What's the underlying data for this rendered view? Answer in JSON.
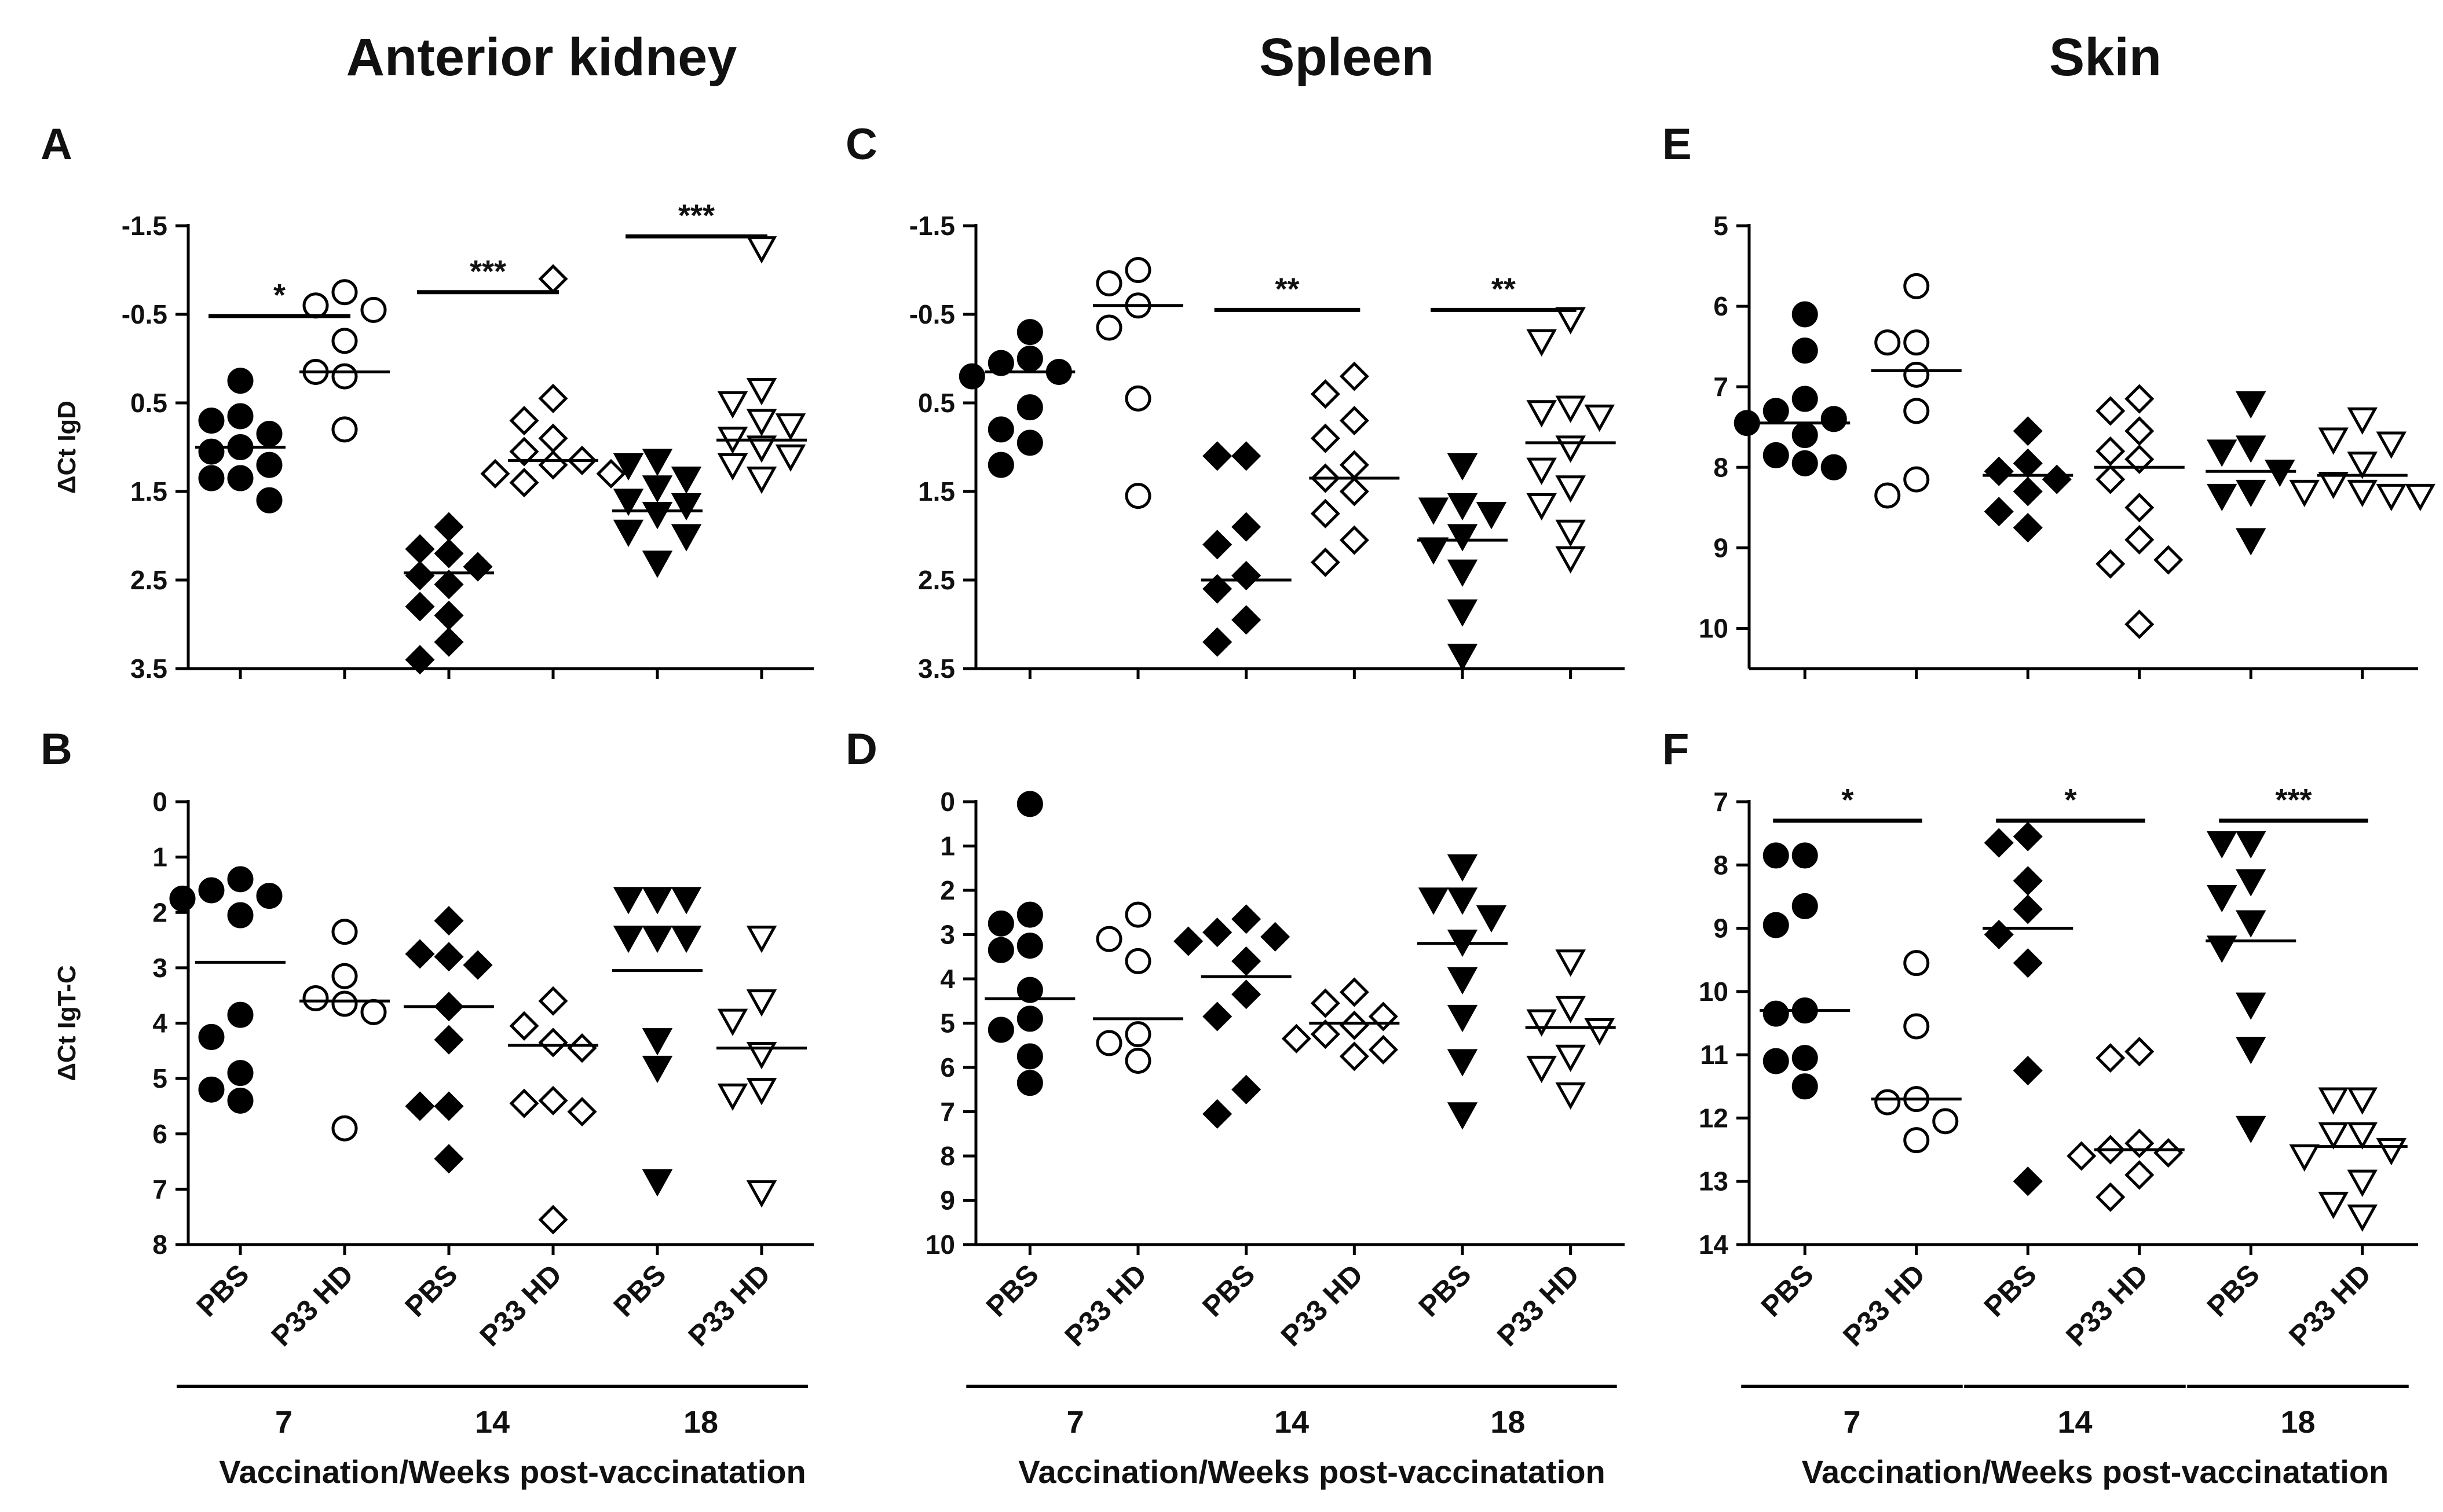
{
  "figure": {
    "column_titles": [
      "Anterior kidney",
      "Spleen",
      "Skin"
    ],
    "xlabel": "Vaccination/Weeks post-vaccinatation",
    "categories": [
      "PBS",
      "P33 HD",
      "PBS",
      "P33 HD",
      "PBS",
      "P33 HD"
    ],
    "weeks": [
      "7",
      "14",
      "18"
    ]
  },
  "marker_styles": {
    "groups": [
      "PBS-7",
      "P33 HD-7",
      "PBS-14",
      "P33 HD-14",
      "PBS-18",
      "P33 HD-18"
    ],
    "shapes": [
      "circle",
      "circle",
      "diamond",
      "diamond",
      "triangle-down",
      "triangle-down"
    ],
    "filled": [
      true,
      false,
      true,
      false,
      true,
      false
    ],
    "color": "#000000"
  },
  "chart_data": [
    {
      "panel": "A",
      "type": "scatter",
      "ylabel": "ΔCt IgD",
      "inverted": true,
      "ylim": [
        -1.5,
        3.5
      ],
      "yticks": [
        "-1.5",
        "-0.5",
        "0.5",
        "1.5",
        "2.5",
        "3.5"
      ],
      "series": [
        {
          "group": "PBS-7",
          "values": [
            0.25,
            0.65,
            0.7,
            0.85,
            1.0,
            1.05,
            1.2,
            1.35,
            1.35,
            1.6
          ],
          "mean": 1.0
        },
        {
          "group": "P33 HD-7",
          "values": [
            -0.75,
            -0.6,
            -0.55,
            -0.2,
            0.2,
            0.15,
            0.8
          ],
          "mean": 0.15
        },
        {
          "group": "PBS-14",
          "values": [
            1.9,
            2.15,
            2.2,
            2.35,
            2.45,
            2.55,
            2.8,
            2.9,
            3.2,
            3.4
          ],
          "mean": 2.42
        },
        {
          "group": "P33 HD-14",
          "values": [
            -0.9,
            0.45,
            0.7,
            0.9,
            1.05,
            1.15,
            1.2,
            1.3,
            1.3,
            1.4
          ],
          "mean": 1.15
        },
        {
          "group": "PBS-18",
          "values": [
            1.15,
            1.2,
            1.35,
            1.45,
            1.6,
            1.65,
            1.75,
            1.95,
            2.0,
            2.3
          ],
          "mean": 1.72
        },
        {
          "group": "P33 HD-18",
          "values": [
            -1.25,
            0.35,
            0.5,
            0.7,
            0.75,
            0.9,
            1.0,
            1.1,
            1.2,
            1.35
          ],
          "mean": 0.92
        }
      ],
      "significance": [
        {
          "label": "*",
          "from": 0,
          "to": 1,
          "y": -0.48
        },
        {
          "label": "***",
          "from": 2,
          "to": 3,
          "y": -0.75
        },
        {
          "label": "***",
          "from": 4,
          "to": 5,
          "y": -1.38
        }
      ]
    },
    {
      "panel": "B",
      "type": "scatter",
      "ylabel": "ΔCt IgT-C",
      "inverted": true,
      "ylim": [
        0,
        8
      ],
      "yticks": [
        "0",
        "1",
        "2",
        "3",
        "4",
        "5",
        "6",
        "7",
        "8"
      ],
      "series": [
        {
          "group": "PBS-7",
          "values": [
            1.4,
            1.6,
            1.7,
            1.75,
            2.05,
            3.85,
            4.25,
            4.9,
            5.2,
            5.4
          ],
          "mean": 2.9
        },
        {
          "group": "P33 HD-7",
          "values": [
            2.35,
            3.15,
            3.55,
            3.65,
            3.8,
            5.9
          ],
          "mean": 3.6
        },
        {
          "group": "PBS-14",
          "values": [
            2.15,
            2.8,
            2.75,
            2.95,
            3.7,
            4.3,
            5.5,
            5.5,
            6.45
          ],
          "mean": 3.7
        },
        {
          "group": "P33 HD-14",
          "values": [
            3.6,
            4.05,
            4.35,
            4.45,
            5.4,
            5.45,
            5.6,
            7.55
          ],
          "mean": 4.4
        },
        {
          "group": "PBS-18",
          "values": [
            1.75,
            1.75,
            1.75,
            2.45,
            2.45,
            2.45,
            4.3,
            4.8,
            6.85
          ],
          "mean": 3.05
        },
        {
          "group": "P33 HD-18",
          "values": [
            2.45,
            3.6,
            3.95,
            4.55,
            5.2,
            5.3,
            7.05
          ],
          "mean": 4.45
        }
      ]
    },
    {
      "panel": "C",
      "type": "scatter",
      "ylabel": "",
      "inverted": true,
      "ylim": [
        -1.5,
        3.5
      ],
      "yticks": [
        "-1.5",
        "-0.5",
        "0.5",
        "1.5",
        "2.5",
        "3.5"
      ],
      "series": [
        {
          "group": "PBS-7",
          "values": [
            -0.3,
            0.0,
            0.05,
            0.15,
            0.2,
            0.55,
            0.8,
            0.95,
            1.2
          ],
          "mean": 0.15
        },
        {
          "group": "P33 HD-7",
          "values": [
            -1.0,
            -0.85,
            -0.6,
            -0.35,
            0.45,
            1.55
          ],
          "mean": -0.6
        },
        {
          "group": "PBS-14",
          "values": [
            1.1,
            1.1,
            1.9,
            2.1,
            2.45,
            2.6,
            2.95,
            3.2
          ],
          "mean": 2.5
        },
        {
          "group": "P33 HD-14",
          "values": [
            0.2,
            0.4,
            0.7,
            0.9,
            1.2,
            1.35,
            1.5,
            1.75,
            2.05,
            2.3
          ],
          "mean": 1.35
        },
        {
          "group": "PBS-18",
          "values": [
            1.2,
            1.65,
            1.7,
            1.75,
            2.0,
            2.15,
            2.4,
            2.85,
            3.35
          ],
          "mean": 2.05
        },
        {
          "group": "P33 HD-18",
          "values": [
            -0.45,
            -0.2,
            0.55,
            0.6,
            0.65,
            1.0,
            1.25,
            1.45,
            1.65,
            1.95,
            2.25
          ],
          "mean": 0.95
        }
      ],
      "significance": [
        {
          "label": "**",
          "from": 2,
          "to": 3,
          "y": -0.55
        },
        {
          "label": "**",
          "from": 4,
          "to": 5,
          "y": -0.55
        }
      ]
    },
    {
      "panel": "D",
      "type": "scatter",
      "ylabel": "",
      "inverted": true,
      "ylim": [
        0,
        10
      ],
      "yticks": [
        "0",
        "1",
        "2",
        "3",
        "4",
        "5",
        "6",
        "7",
        "8",
        "9",
        "10"
      ],
      "series": [
        {
          "group": "PBS-7",
          "values": [
            0.05,
            2.55,
            2.75,
            3.25,
            3.35,
            4.25,
            4.9,
            5.15,
            5.75,
            6.35
          ],
          "mean": 4.45
        },
        {
          "group": "P33 HD-7",
          "values": [
            2.55,
            3.1,
            3.6,
            5.25,
            5.45,
            5.85
          ],
          "mean": 4.9
        },
        {
          "group": "PBS-14",
          "values": [
            2.65,
            2.95,
            3.05,
            3.15,
            3.6,
            4.35,
            4.85,
            6.5,
            7.05
          ],
          "mean": 3.95
        },
        {
          "group": "P33 HD-14",
          "values": [
            4.3,
            4.55,
            4.85,
            5.05,
            5.25,
            5.35,
            5.6,
            5.75
          ],
          "mean": 5.0
        },
        {
          "group": "PBS-18",
          "values": [
            1.45,
            2.2,
            2.2,
            2.6,
            3.15,
            4.0,
            4.85,
            5.85,
            7.05
          ],
          "mean": 3.2
        },
        {
          "group": "P33 HD-18",
          "values": [
            3.6,
            4.65,
            4.95,
            5.15,
            5.75,
            6.0,
            6.6
          ],
          "mean": 5.1
        }
      ]
    },
    {
      "panel": "E",
      "type": "scatter",
      "ylabel": "",
      "inverted": true,
      "ylim": [
        5,
        10.5
      ],
      "yticks": [
        "5",
        "6",
        "7",
        "8",
        "9",
        "10"
      ],
      "series": [
        {
          "group": "PBS-7",
          "values": [
            6.1,
            6.55,
            7.15,
            7.3,
            7.4,
            7.45,
            7.6,
            7.85,
            7.95,
            8.0
          ],
          "mean": 7.45
        },
        {
          "group": "P33 HD-7",
          "values": [
            5.75,
            6.45,
            6.85,
            7.3,
            8.15,
            8.35,
            6.45
          ],
          "mean": 6.8
        },
        {
          "group": "PBS-14",
          "values": [
            7.55,
            7.95,
            8.05,
            8.15,
            8.3,
            8.55,
            8.75
          ],
          "mean": 8.1
        },
        {
          "group": "P33 HD-14",
          "values": [
            7.15,
            7.3,
            7.55,
            7.8,
            7.9,
            8.15,
            8.5,
            8.9,
            9.2,
            9.15,
            9.95
          ],
          "mean": 8.0
        },
        {
          "group": "PBS-18",
          "values": [
            7.2,
            7.75,
            7.8,
            8.05,
            8.3,
            8.35,
            8.9
          ],
          "mean": 8.05
        },
        {
          "group": "P33 HD-18",
          "values": [
            7.4,
            7.65,
            7.7,
            7.95,
            8.2,
            8.3,
            8.35,
            8.3,
            8.35
          ],
          "mean": 8.1
        }
      ]
    },
    {
      "panel": "F",
      "type": "scatter",
      "ylabel": "",
      "inverted": true,
      "ylim": [
        7,
        14
      ],
      "yticks": [
        "7",
        "8",
        "9",
        "10",
        "11",
        "12",
        "13",
        "14"
      ],
      "series": [
        {
          "group": "PBS-7",
          "values": [
            7.85,
            7.85,
            8.65,
            8.95,
            10.3,
            10.35,
            11.05,
            11.1,
            11.5
          ],
          "mean": 10.3
        },
        {
          "group": "P33 HD-7",
          "values": [
            9.55,
            10.55,
            11.7,
            11.75,
            12.05,
            12.35
          ],
          "mean": 11.7
        },
        {
          "group": "PBS-14",
          "values": [
            7.55,
            7.65,
            8.25,
            8.7,
            9.1,
            9.55,
            11.25,
            13.0
          ],
          "mean": 9.0
        },
        {
          "group": "P33 HD-14",
          "values": [
            10.95,
            11.05,
            12.4,
            12.5,
            12.55,
            12.6,
            12.9,
            13.25
          ],
          "mean": 12.5
        },
        {
          "group": "PBS-18",
          "values": [
            7.65,
            7.65,
            8.25,
            8.5,
            8.9,
            9.3,
            10.2,
            10.9,
            12.15
          ],
          "mean": 9.2
        },
        {
          "group": "P33 HD-18",
          "values": [
            11.7,
            11.7,
            12.25,
            12.25,
            12.5,
            12.6,
            13.0,
            13.35,
            13.55
          ],
          "mean": 12.45
        }
      ],
      "significance": [
        {
          "label": "*",
          "from": 0,
          "to": 1,
          "y": 7.3
        },
        {
          "label": "*",
          "from": 2,
          "to": 3,
          "y": 7.3
        },
        {
          "label": "***",
          "from": 4,
          "to": 5,
          "y": 7.3
        }
      ]
    }
  ]
}
